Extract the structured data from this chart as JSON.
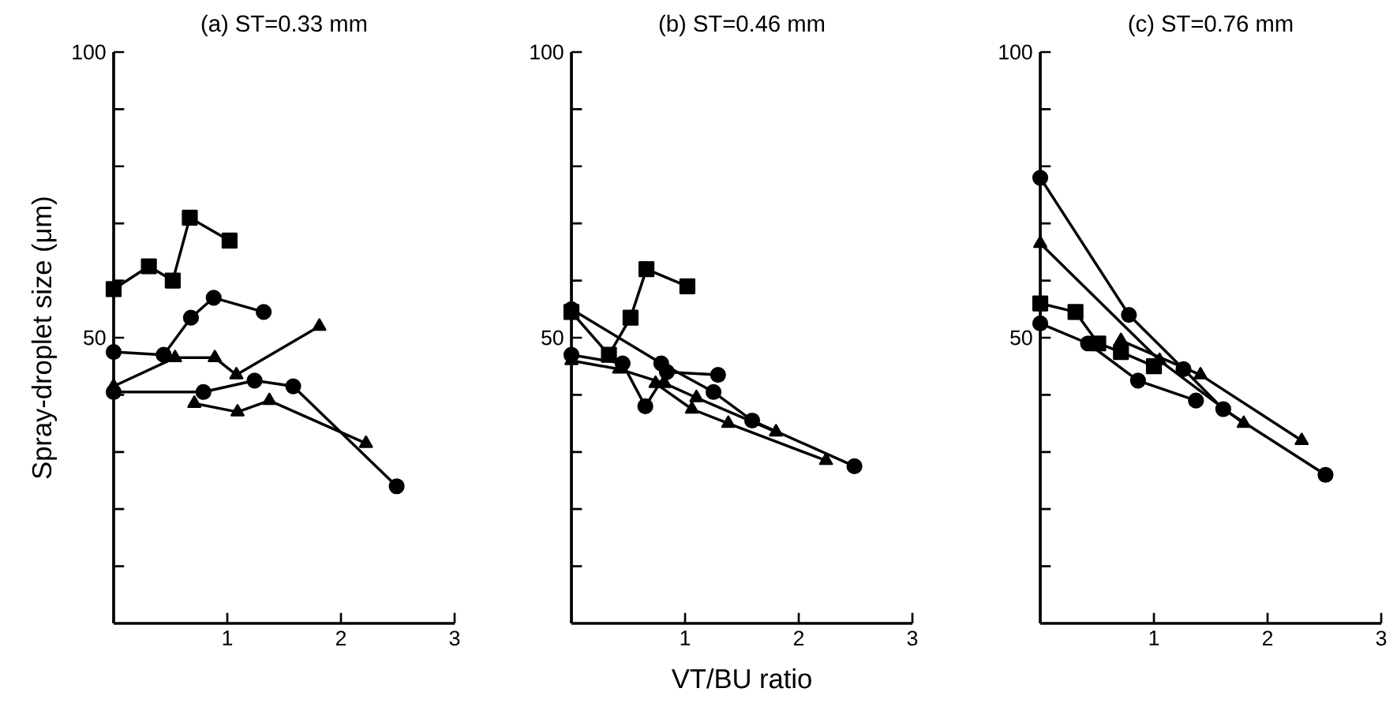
{
  "chart_data": [
    {
      "type": "line",
      "title": "(a) ST=0.33 mm",
      "ylabel": "Spray-droplet size (μm)",
      "xlim": [
        0,
        3
      ],
      "ylim": [
        0,
        100
      ],
      "xticks": [
        1,
        2,
        3
      ],
      "yticks": [
        {
          "value": 10,
          "label": null
        },
        {
          "value": 20,
          "label": null
        },
        {
          "value": 30,
          "label": null
        },
        {
          "value": 40,
          "label": null
        },
        50,
        {
          "value": 60,
          "label": null
        },
        {
          "value": 70,
          "label": null
        },
        {
          "value": 80,
          "label": null
        },
        {
          "value": 90,
          "label": null
        },
        100
      ],
      "grid": false,
      "line_style": "solid",
      "series": [
        {
          "color": "#000000",
          "marker": "square",
          "x": [
            0,
            0.31,
            0.52,
            0.67,
            1.02
          ],
          "values": [
            58.5,
            62.5,
            60,
            71,
            67
          ]
        },
        {
          "color": "#000000",
          "marker": "circle",
          "x": [
            0,
            0.44,
            0.68,
            0.88,
            1.32
          ],
          "values": [
            47.5,
            47,
            53.5,
            57,
            54.5
          ]
        },
        {
          "color": "#000000",
          "marker": "triangle",
          "x": [
            0,
            0.54,
            0.89,
            1.08,
            1.81
          ],
          "values": [
            41.5,
            46.5,
            46.5,
            43.5,
            52
          ]
        },
        {
          "color": "#000000",
          "marker": "circle",
          "x": [
            0,
            0.79,
            1.24,
            1.58,
            2.49
          ],
          "values": [
            40.5,
            40.5,
            42.5,
            41.5,
            24
          ]
        },
        {
          "color": "#000000",
          "marker": "triangle",
          "x": [
            0.71,
            1.09,
            1.37,
            2.22
          ],
          "values": [
            38.5,
            37,
            39,
            31.5
          ]
        }
      ]
    },
    {
      "type": "line",
      "title": "(b) ST=0.46 mm",
      "xlabel": "VT/BU ratio",
      "xlim": [
        0,
        3
      ],
      "ylim": [
        0,
        100
      ],
      "xticks": [
        1,
        2,
        3
      ],
      "yticks": [
        {
          "value": 10,
          "label": null
        },
        {
          "value": 20,
          "label": null
        },
        {
          "value": 30,
          "label": null
        },
        {
          "value": 40,
          "label": null
        },
        50,
        {
          "value": 60,
          "label": null
        },
        {
          "value": 70,
          "label": null
        },
        {
          "value": 80,
          "label": null
        },
        {
          "value": 90,
          "label": null
        },
        100
      ],
      "grid": false,
      "line_style": "solid",
      "series": [
        {
          "color": "#000000",
          "marker": "square",
          "x": [
            0,
            0.33,
            0.52,
            0.66,
            1.02
          ],
          "values": [
            54.5,
            47,
            53.5,
            62,
            59
          ]
        },
        {
          "color": "#000000",
          "marker": "circle",
          "x": [
            0,
            0.79,
            1.25,
            1.59,
            2.49
          ],
          "values": [
            55,
            45.5,
            40.5,
            35.5,
            27.5
          ]
        },
        {
          "color": "#000000",
          "marker": "circle",
          "x": [
            0,
            0.45,
            0.65,
            0.84,
            1.29
          ],
          "values": [
            47,
            45.5,
            38,
            44,
            43.5
          ]
        },
        {
          "color": "#000000",
          "marker": "triangle",
          "x": [
            0,
            0.42,
            0.82,
            1.1,
            1.8
          ],
          "values": [
            46,
            44.5,
            42,
            39.5,
            33.5
          ]
        },
        {
          "color": "#000000",
          "marker": "triangle",
          "x": [
            0.74,
            1.06,
            1.38,
            2.24
          ],
          "values": [
            42,
            37.5,
            35,
            28.5
          ]
        }
      ]
    },
    {
      "type": "line",
      "title": "(c) ST=0.76 mm",
      "xlim": [
        0,
        3
      ],
      "ylim": [
        0,
        100
      ],
      "xticks": [
        1,
        2,
        3
      ],
      "yticks": [
        {
          "value": 10,
          "label": null
        },
        {
          "value": 20,
          "label": null
        },
        {
          "value": 30,
          "label": null
        },
        {
          "value": 40,
          "label": null
        },
        50,
        {
          "value": 60,
          "label": null
        },
        {
          "value": 70,
          "label": null
        },
        {
          "value": 80,
          "label": null
        },
        {
          "value": 90,
          "label": null
        },
        100
      ],
      "grid": false,
      "line_style": "solid",
      "series": [
        {
          "color": "#000000",
          "marker": "circle",
          "x": [
            0,
            0.78,
            1.26,
            1.61,
            2.51
          ],
          "values": [
            78,
            54,
            44.5,
            37.5,
            26
          ]
        },
        {
          "color": "#000000",
          "marker": "triangle",
          "x": [
            0,
            1.05,
            1.79
          ],
          "values": [
            66.5,
            46,
            35
          ]
        },
        {
          "color": "#000000",
          "marker": "triangle",
          "x": [
            0.71,
            1.41,
            2.3
          ],
          "values": [
            49.5,
            43.5,
            32
          ]
        },
        {
          "color": "#000000",
          "marker": "square",
          "x": [
            0,
            0.31,
            0.51,
            0.71,
            1.0
          ],
          "values": [
            56,
            54.5,
            49,
            47.5,
            45
          ]
        },
        {
          "color": "#000000",
          "marker": "circle",
          "x": [
            0,
            0.42,
            0.86,
            1.37
          ],
          "values": [
            52.5,
            49,
            42.5,
            39
          ]
        }
      ]
    }
  ]
}
